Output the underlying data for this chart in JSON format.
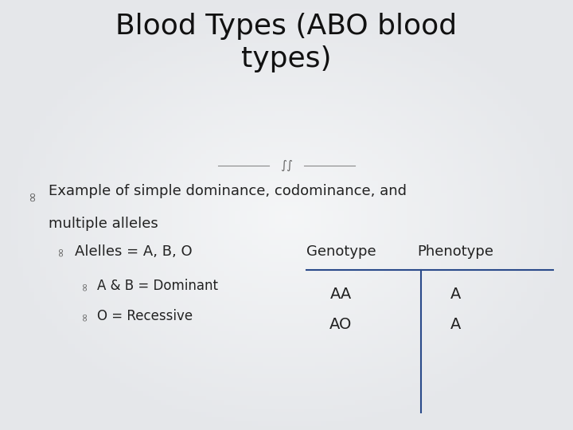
{
  "title_line1": "Blood Types (ABO blood",
  "title_line2": "types)",
  "background_color": "#e8eaed",
  "title_color": "#111111",
  "title_fontsize": 26,
  "body_fontsize": 13,
  "text_color": "#222222",
  "table_line_color": "#2a4a8a",
  "bullet_char": "∞",
  "squiggle_char": "∞∞",
  "line1_text": "Example of simple dominance, codominance, and",
  "line2_text": "multiple alleles",
  "alleles_text": "Alelles = A, B, O",
  "dominant_text": "A & B = Dominant",
  "recessive_text": "O = Recessive",
  "genotype_header": "Genotype",
  "phenotype_header": "Phenotype",
  "genotype_val1": "AA",
  "genotype_val2": "AO",
  "phenotype_val1": "A",
  "phenotype_val2": "A",
  "grad_left": "#d0d4da",
  "grad_right": "#f0f2f5",
  "grad_center": "#f5f6f8"
}
